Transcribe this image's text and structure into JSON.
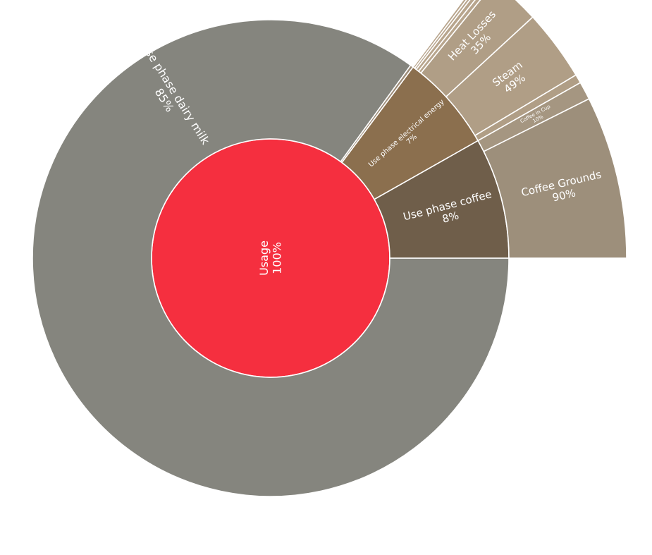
{
  "chart_data": {
    "type": "sunburst",
    "root": {
      "label": "Usage",
      "percent": "100%",
      "color": "#f52f3f",
      "children": [
        {
          "label": "Use phase dairy milk",
          "percent": "85%",
          "share": 0.85,
          "color": "#85857e",
          "children": []
        },
        {
          "label": "",
          "percent": "",
          "share": 0.002,
          "color": "#9c8b77",
          "children": []
        },
        {
          "label": "Use phase electrical energy",
          "percent": "7%",
          "share": 0.066,
          "color": "#8b6f4e",
          "children": [
            {
              "label": "",
              "percent": "",
              "share": 0.02,
              "color": "#b8a58d"
            },
            {
              "label": "",
              "percent": "",
              "share": 0.02,
              "color": "#b8a58d"
            },
            {
              "label": "",
              "percent": "",
              "share": 0.03,
              "color": "#b8a58d"
            },
            {
              "label": "",
              "percent": "",
              "share": 0.03,
              "color": "#b8a58d"
            },
            {
              "label": "Heat Losses",
              "percent": "35%",
              "share": 0.35,
              "color": "#b09e86"
            },
            {
              "label": "Steam",
              "percent": "49%",
              "share": 0.49,
              "color": "#b09e86"
            },
            {
              "label": "",
              "percent": "",
              "share": 0.06,
              "color": "#b09e86"
            }
          ]
        },
        {
          "label": "Use phase coffee",
          "percent": "8%",
          "share": 0.082,
          "color": "#6f5e4a",
          "children": [
            {
              "label": "Coffee in Cup",
              "percent": "10%",
              "share": 0.1,
              "color": "#a59681"
            },
            {
              "label": "Coffee Grounds",
              "percent": "90%",
              "share": 0.9,
              "color": "#9d8f7b"
            }
          ]
        }
      ]
    }
  }
}
